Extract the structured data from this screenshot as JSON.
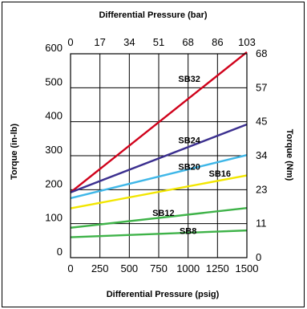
{
  "chart_data": {
    "type": "line",
    "x_axis": {
      "label": "Differential Pressure (psig)",
      "range": [
        0,
        1500
      ],
      "ticks": [
        0,
        250,
        500,
        750,
        1000,
        1250,
        1500
      ]
    },
    "x2_axis": {
      "label": "Differential Pressure (bar)",
      "tick_labels": [
        "0",
        "17",
        "34",
        "51",
        "68",
        "86",
        "103"
      ]
    },
    "y_axis": {
      "label": "Torque (in-lb)",
      "range": [
        0,
        600
      ],
      "ticks": [
        0,
        100,
        200,
        300,
        400,
        500,
        600
      ]
    },
    "y2_axis": {
      "label": "Torque (Nm)",
      "tick_labels": [
        "0",
        "11",
        "23",
        "34",
        "45",
        "57",
        "68"
      ]
    },
    "grid": true,
    "series": [
      {
        "name": "SB32",
        "color": "#d0021b",
        "x": [
          0,
          1500
        ],
        "y": [
          192,
          605
        ]
      },
      {
        "name": "SB24",
        "color": "#3b2f8f",
        "x": [
          0,
          1500
        ],
        "y": [
          192,
          392
        ]
      },
      {
        "name": "SB20",
        "color": "#3fb7e8",
        "x": [
          0,
          1500
        ],
        "y": [
          175,
          302
        ]
      },
      {
        "name": "SB16",
        "color": "#f2e600",
        "x": [
          0,
          1500
        ],
        "y": [
          145,
          242
        ]
      },
      {
        "name": "SB12",
        "color": "#3fb349",
        "x": [
          0,
          1500
        ],
        "y": [
          88,
          146
        ]
      },
      {
        "name": "SB8",
        "color": "#3fb349",
        "x": [
          0,
          1500
        ],
        "y": [
          60,
          80
        ]
      }
    ],
    "series_labels": [
      {
        "name": "SB32",
        "x": 1010,
        "y": 517
      },
      {
        "name": "SB24",
        "x": 1010,
        "y": 337
      },
      {
        "name": "SB20",
        "x": 1010,
        "y": 259
      },
      {
        "name": "SB16",
        "x": 1270,
        "y": 238
      },
      {
        "name": "SB12",
        "x": 790,
        "y": 123
      },
      {
        "name": "SB8",
        "x": 1000,
        "y": 70
      }
    ]
  }
}
